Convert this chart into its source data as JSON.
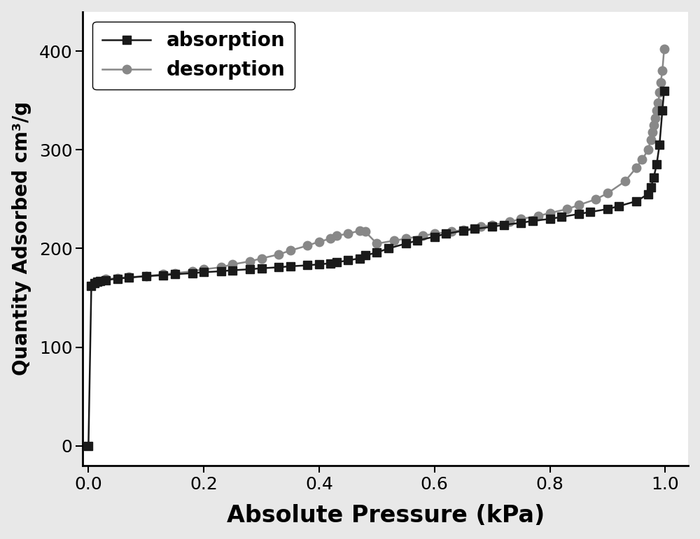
{
  "absorption_x": [
    0.0,
    0.005,
    0.01,
    0.015,
    0.02,
    0.03,
    0.05,
    0.07,
    0.1,
    0.13,
    0.15,
    0.18,
    0.2,
    0.23,
    0.25,
    0.28,
    0.3,
    0.33,
    0.35,
    0.38,
    0.4,
    0.42,
    0.43,
    0.45,
    0.47,
    0.48,
    0.5,
    0.52,
    0.55,
    0.57,
    0.6,
    0.62,
    0.65,
    0.67,
    0.7,
    0.72,
    0.75,
    0.77,
    0.8,
    0.82,
    0.85,
    0.87,
    0.9,
    0.92,
    0.95,
    0.97,
    0.975,
    0.98,
    0.985,
    0.99,
    0.995,
    0.998
  ],
  "absorption_y": [
    0.0,
    162.0,
    165.0,
    166.5,
    167.0,
    168.0,
    169.5,
    170.5,
    172.0,
    173.0,
    174.0,
    175.0,
    176.0,
    177.0,
    178.0,
    179.0,
    180.0,
    181.0,
    182.0,
    183.0,
    184.0,
    185.0,
    186.0,
    188.0,
    190.0,
    193.0,
    196.0,
    200.0,
    205.0,
    208.0,
    212.0,
    215.0,
    218.0,
    220.0,
    222.0,
    224.0,
    226.0,
    228.0,
    230.0,
    232.0,
    235.0,
    237.0,
    240.0,
    243.0,
    248.0,
    255.0,
    262.0,
    272.0,
    285.0,
    305.0,
    340.0,
    360.0
  ],
  "desorption_x": [
    0.998,
    0.995,
    0.992,
    0.99,
    0.988,
    0.985,
    0.982,
    0.98,
    0.978,
    0.975,
    0.97,
    0.96,
    0.95,
    0.93,
    0.9,
    0.88,
    0.85,
    0.83,
    0.8,
    0.78,
    0.75,
    0.73,
    0.7,
    0.68,
    0.65,
    0.63,
    0.6,
    0.58,
    0.55,
    0.53,
    0.5,
    0.48,
    0.47,
    0.45,
    0.43,
    0.42,
    0.4,
    0.38,
    0.35,
    0.33,
    0.3,
    0.28,
    0.25,
    0.23,
    0.2,
    0.18,
    0.15,
    0.13,
    0.1,
    0.07,
    0.05,
    0.03
  ],
  "desorption_y": [
    402.0,
    380.0,
    368.0,
    358.0,
    348.0,
    340.0,
    332.0,
    325.0,
    318.0,
    310.0,
    300.0,
    290.0,
    282.0,
    268.0,
    256.0,
    250.0,
    244.0,
    240.0,
    236.0,
    233.0,
    230.0,
    227.0,
    224.0,
    222.0,
    219.0,
    217.0,
    215.0,
    213.0,
    210.0,
    208.0,
    205.0,
    217.0,
    218.0,
    215.0,
    213.0,
    210.0,
    207.0,
    203.0,
    198.0,
    194.0,
    190.0,
    187.0,
    184.0,
    181.0,
    179.0,
    177.0,
    175.0,
    174.0,
    172.0,
    171.0,
    170.0,
    169.0
  ],
  "absorption_color": "#1a1a1a",
  "desorption_color": "#888888",
  "xlabel": "Absolute Pressure (kPa)",
  "ylabel": "Quantity Adsorbed cm³/g",
  "xlim": [
    -0.01,
    1.04
  ],
  "ylim": [
    -20,
    440
  ],
  "xticks": [
    0.0,
    0.2,
    0.4,
    0.6,
    0.8,
    1.0
  ],
  "yticks": [
    0,
    100,
    200,
    300,
    400
  ],
  "legend_labels": [
    "absorption",
    "desorption"
  ],
  "xlabel_fontsize": 24,
  "ylabel_fontsize": 20,
  "tick_fontsize": 18,
  "legend_fontsize": 20,
  "linewidth": 1.8,
  "marker_size_abs": 8,
  "marker_size_des": 9,
  "fig_facecolor": "#e8e8e8",
  "ax_facecolor": "#ffffff"
}
